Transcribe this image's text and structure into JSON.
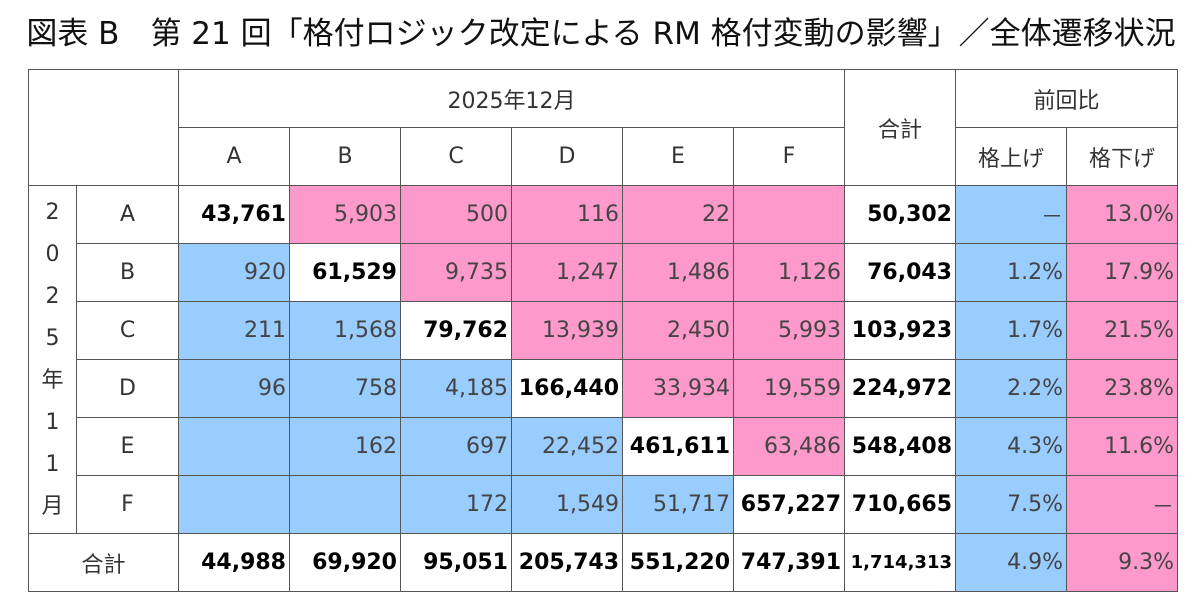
{
  "title": "図表 B　第 21 回「格付ロジック改定による RM 格付変動の影響」／全体遷移状況",
  "header": {
    "period_label": "2025年12月",
    "columns": [
      "A",
      "B",
      "C",
      "D",
      "E",
      "F"
    ],
    "total_label": "合計",
    "ratio_label": "前回比",
    "up_label": "格上げ",
    "down_label": "格下げ"
  },
  "row_group_label": [
    "2",
    "0",
    "2",
    "5",
    "年",
    "1",
    "1",
    "月"
  ],
  "rows": [
    {
      "label": "A",
      "cells": [
        "43,761",
        "5,903",
        "500",
        "116",
        "22",
        ""
      ],
      "total": "50,302",
      "up": "－",
      "down": "13.0%"
    },
    {
      "label": "B",
      "cells": [
        "920",
        "61,529",
        "9,735",
        "1,247",
        "1,486",
        "1,126"
      ],
      "total": "76,043",
      "up": "1.2%",
      "down": "17.9%"
    },
    {
      "label": "C",
      "cells": [
        "211",
        "1,568",
        "79,762",
        "13,939",
        "2,450",
        "5,993"
      ],
      "total": "103,923",
      "up": "1.7%",
      "down": "21.5%"
    },
    {
      "label": "D",
      "cells": [
        "96",
        "758",
        "4,185",
        "166,440",
        "33,934",
        "19,559"
      ],
      "total": "224,972",
      "up": "2.2%",
      "down": "23.8%"
    },
    {
      "label": "E",
      "cells": [
        "",
        "162",
        "697",
        "22,452",
        "461,611",
        "63,486"
      ],
      "total": "548,408",
      "up": "4.3%",
      "down": "11.6%"
    },
    {
      "label": "F",
      "cells": [
        "",
        "",
        "172",
        "1,549",
        "51,717",
        "657,227"
      ],
      "total": "710,665",
      "up": "7.5%",
      "down": "－"
    }
  ],
  "totals_row": {
    "label": "合計",
    "cells": [
      "44,988",
      "69,920",
      "95,051",
      "205,743",
      "551,220",
      "747,391"
    ],
    "total": "1,714,313",
    "up": "4.9%",
    "down": "9.3%"
  },
  "colors": {
    "upgrade": "#99ccff",
    "downgrade": "#fe99cc",
    "diagonal": "#ffffff"
  }
}
